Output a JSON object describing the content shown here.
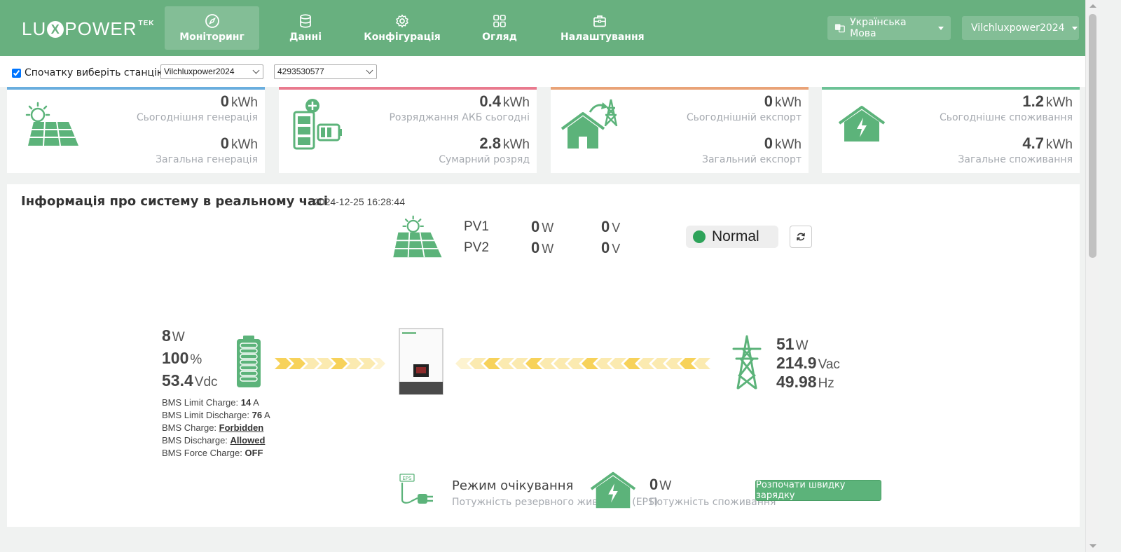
{
  "brand": {
    "name_a": "LU",
    "name_x": "X",
    "name_b": "POWER",
    "name_sup": "TEK"
  },
  "nav": {
    "items": [
      {
        "label": "Моніторинг",
        "icon": "compass-icon",
        "active": true
      },
      {
        "label": "Данні",
        "icon": "database-icon"
      },
      {
        "label": "Конфігурація",
        "icon": "gear-icon"
      },
      {
        "label": "Огляд",
        "icon": "grid-icon"
      },
      {
        "label": "Налаштування",
        "icon": "briefcase-icon"
      }
    ],
    "language": "Українська Мова",
    "user": "Vilchluxpower2024"
  },
  "station": {
    "checkbox_label": "Спочатку виберіть станцію",
    "checked": true,
    "station_select": "Vilchluxpower2024",
    "serial_select": "4293530577"
  },
  "cards": [
    {
      "accent": "#6aaede",
      "v1": "0",
      "u1": "kWh",
      "l1": "Сьогоднішня генерація",
      "v2": "0",
      "u2": "kWh",
      "l2": "Загальна генерація"
    },
    {
      "accent": "#e97a8e",
      "v1": "0.4",
      "u1": "kWh",
      "l1": "Розряджання АКБ сьогодні",
      "v2": "2.8",
      "u2": "kWh",
      "l2": "Сумарний розряд"
    },
    {
      "accent": "#e9a377",
      "v1": "0",
      "u1": "kWh",
      "l1": "Сьогоднішній експорт",
      "v2": "0",
      "u2": "kWh",
      "l2": "Загальний експорт"
    },
    {
      "accent": "#6cc296",
      "v1": "1.2",
      "u1": "kWh",
      "l1": "Сьогоднішнє споживання",
      "v2": "4.7",
      "u2": "kWh",
      "l2": "Загальне споживання"
    }
  ],
  "realtime": {
    "title": "Інформація про систему в реальному часі",
    "timestamp": "2024-12-25 16:28:44",
    "pv": [
      {
        "name": "PV1",
        "power": "0",
        "power_unit": "W",
        "voltage": "0",
        "voltage_unit": "V"
      },
      {
        "name": "PV2",
        "power": "0",
        "power_unit": "W",
        "voltage": "0",
        "voltage_unit": "V"
      }
    ],
    "status": "Normal",
    "battery": {
      "power": "8",
      "power_unit": "W",
      "soc": "100",
      "soc_unit": "%",
      "voltage": "53.4",
      "voltage_unit": "Vdc",
      "bms": {
        "limit_charge_label": "BMS Limit Charge:",
        "limit_charge": "14",
        "limit_charge_unit": "A",
        "limit_discharge_label": "BMS Limit Discharge:",
        "limit_discharge": "76",
        "limit_discharge_unit": "A",
        "charge_label": "BMS Charge:",
        "charge": "Forbidden",
        "discharge_label": "BMS Discharge:",
        "discharge": "Allowed",
        "force_label": "BMS Force Charge:",
        "force": "OFF"
      }
    },
    "grid": {
      "power": "51",
      "power_unit": "W",
      "voltage": "214.9",
      "voltage_unit": "Vac",
      "freq": "49.98",
      "freq_unit": "Hz"
    },
    "eps": {
      "badge": "EPS",
      "mode": "Режим очікування",
      "label": "Потужність резервного живлення (EPS)"
    },
    "consumption": {
      "value": "0",
      "unit": "W",
      "label": "Потужність споживання"
    },
    "quick_charge": "Розпочати швидку зарядку",
    "colors": {
      "green": "#5cb37a",
      "chevron_yellow": "#f7d25a",
      "chevron_pale": "#fbeab0"
    }
  }
}
